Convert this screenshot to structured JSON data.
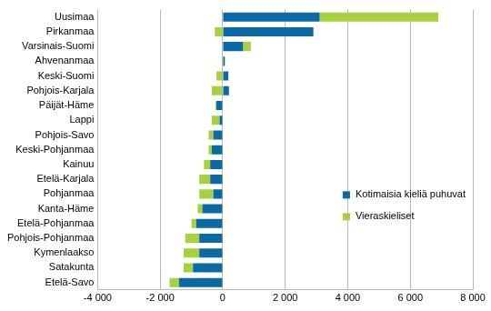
{
  "chart_data": {
    "type": "bar",
    "orientation": "horizontal",
    "stacked": true,
    "grid": true,
    "legend": "lower right",
    "categories": [
      "Uusimaa",
      "Pirkanmaa",
      "Varsinais-Suomi",
      "Ahvenanmaa",
      "Keski-Suomi",
      "Pohjois-Karjala",
      "Päijät-Häme",
      "Lappi",
      "Pohjois-Savo",
      "Keski-Pohjanmaa",
      "Kainuu",
      "Etelä-Karjala",
      "Pohjanmaa",
      "Kanta-Häme",
      "Etelä-Pohjanmaa",
      "Pohjois-Pohjanmaa",
      "Kymenlaakso",
      "Satakunta",
      "Etelä-Savo"
    ],
    "series": [
      {
        "name": "Kotimaisia kieliä puhuvat",
        "color": "#0a6aa6",
        "values": [
          3100,
          2900,
          650,
          60,
          180,
          200,
          -200,
          -100,
          -300,
          -350,
          -400,
          -400,
          -300,
          -650,
          -850,
          -750,
          -750,
          -950,
          -1400
        ]
      },
      {
        "name": "Vieraskieliset",
        "color": "#a9d03f",
        "values": [
          3800,
          -250,
          250,
          20,
          -200,
          -350,
          -30,
          -250,
          -150,
          -100,
          -200,
          -350,
          -450,
          -150,
          -150,
          -450,
          -500,
          -300,
          -300
        ]
      }
    ],
    "xlim": [
      -4000,
      8000
    ],
    "xticks": [
      {
        "value": -4000,
        "label": "-4 000"
      },
      {
        "value": -2000,
        "label": "-2 000"
      },
      0,
      {
        "value": 2000,
        "label": "2 000"
      },
      {
        "value": 4000,
        "label": "4 000"
      },
      {
        "value": 6000,
        "label": "6 000"
      },
      {
        "value": 8000,
        "label": "8 000"
      }
    ]
  }
}
